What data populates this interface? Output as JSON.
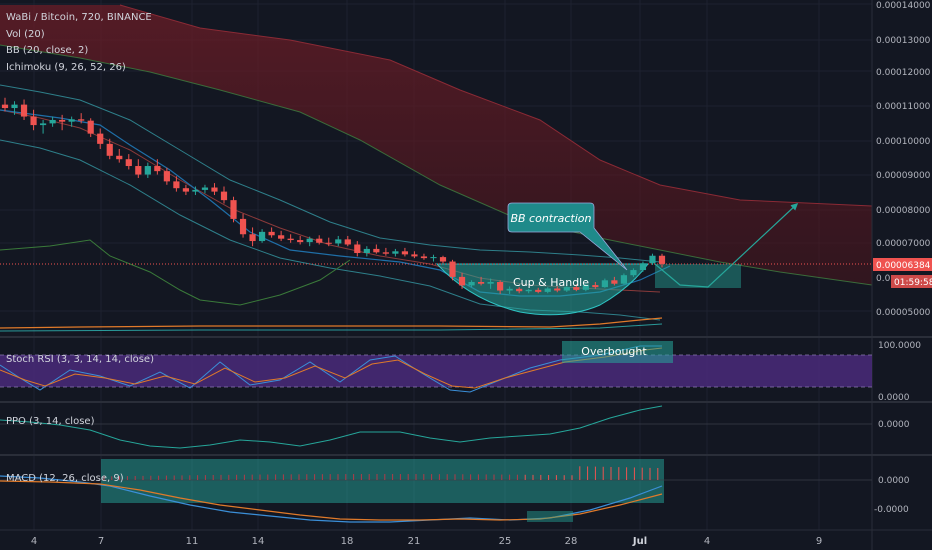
{
  "header": {
    "symbol": "WaBi / Bitcoin, 720, BINANCE",
    "indicators": [
      "Vol (20)",
      "BB (20, close, 2)",
      "Ichimoku (9, 26, 52, 26)"
    ]
  },
  "price_axis": {
    "ticks": [
      "0.00014000",
      "0.00013000",
      "0.00012000",
      "0.00011000",
      "0.00010000",
      "0.00009000",
      "0.00008000",
      "0.00007000",
      "0.00005000"
    ],
    "current_price": "0.00006384",
    "countdown": "01:59:58",
    "hidden_tick_fragment": "0.0"
  },
  "panes": {
    "stoch": {
      "label": "Stoch RSI (3, 3, 14, 14, close)",
      "ticks": [
        "100.0000",
        "0.0000"
      ]
    },
    "ppo": {
      "label": "PPO (3, 14, close)",
      "tick": "0.0000"
    },
    "macd": {
      "label": "MACD (12, 26, close, 9)",
      "ticks": [
        "0.0000",
        "-0.0000"
      ]
    }
  },
  "time_axis": [
    "4",
    "7",
    "11",
    "14",
    "18",
    "21",
    "25",
    "28",
    "Jul",
    "4",
    "9"
  ],
  "annotations": {
    "bb_contraction": "BB contraction",
    "cup_handle": "Cup & Handle",
    "overbought": "Overbought"
  },
  "colors": {
    "background": "#131722",
    "up": "#26a69a",
    "down": "#ef5350",
    "cloud": "#5b1a22",
    "price_line": "#ef5350",
    "stoch_band": "#4a2a7a",
    "annotation": "#26a69a"
  },
  "chart_data": {
    "type": "candlestick",
    "title": "WaBi / Bitcoin, 720, BINANCE",
    "ylim": [
      4.6e-05,
      0.000141
    ],
    "current_price": 6.384e-05,
    "candles": [
      {
        "o": 0.0001105,
        "h": 0.0001125,
        "l": 0.0001085,
        "c": 0.0001095
      },
      {
        "o": 0.0001095,
        "h": 0.0001115,
        "l": 0.0001075,
        "c": 0.0001105
      },
      {
        "o": 0.0001105,
        "h": 0.000112,
        "l": 0.000106,
        "c": 0.000107
      },
      {
        "o": 0.000107,
        "h": 0.000109,
        "l": 0.000103,
        "c": 0.0001045
      },
      {
        "o": 0.0001045,
        "h": 0.000106,
        "l": 0.000102,
        "c": 0.000105
      },
      {
        "o": 0.000105,
        "h": 0.000107,
        "l": 0.000104,
        "c": 0.000106
      },
      {
        "o": 0.000106,
        "h": 0.0001075,
        "l": 0.000103,
        "c": 0.0001055
      },
      {
        "o": 0.0001055,
        "h": 0.000107,
        "l": 0.000104,
        "c": 0.0001062
      },
      {
        "o": 0.0001062,
        "h": 0.000108,
        "l": 0.000105,
        "c": 0.0001058
      },
      {
        "o": 0.0001058,
        "h": 0.0001065,
        "l": 0.000101,
        "c": 0.000102
      },
      {
        "o": 0.000102,
        "h": 0.0001035,
        "l": 9.75e-05,
        "c": 9.9e-05
      },
      {
        "o": 9.9e-05,
        "h": 0.0001005,
        "l": 9.45e-05,
        "c": 9.55e-05
      },
      {
        "o": 9.55e-05,
        "h": 9.75e-05,
        "l": 9.35e-05,
        "c": 9.45e-05
      },
      {
        "o": 9.45e-05,
        "h": 9.6e-05,
        "l": 9.15e-05,
        "c": 9.25e-05
      },
      {
        "o": 9.25e-05,
        "h": 9.45e-05,
        "l": 8.9e-05,
        "c": 9e-05
      },
      {
        "o": 9e-05,
        "h": 9.35e-05,
        "l": 8.9e-05,
        "c": 9.25e-05
      },
      {
        "o": 9.25e-05,
        "h": 9.45e-05,
        "l": 9e-05,
        "c": 9.1e-05
      },
      {
        "o": 9.1e-05,
        "h": 9.2e-05,
        "l": 8.7e-05,
        "c": 8.8e-05
      },
      {
        "o": 8.8e-05,
        "h": 8.95e-05,
        "l": 8.5e-05,
        "c": 8.6e-05
      },
      {
        "o": 8.6e-05,
        "h": 8.7e-05,
        "l": 8.4e-05,
        "c": 8.5e-05
      },
      {
        "o": 8.5e-05,
        "h": 8.65e-05,
        "l": 8.4e-05,
        "c": 8.55e-05
      },
      {
        "o": 8.55e-05,
        "h": 8.7e-05,
        "l": 8.45e-05,
        "c": 8.62e-05
      },
      {
        "o": 8.62e-05,
        "h": 8.75e-05,
        "l": 8.4e-05,
        "c": 8.5e-05
      },
      {
        "o": 8.5e-05,
        "h": 8.65e-05,
        "l": 8.15e-05,
        "c": 8.25e-05
      },
      {
        "o": 8.25e-05,
        "h": 8.35e-05,
        "l": 7.6e-05,
        "c": 7.7e-05
      },
      {
        "o": 7.7e-05,
        "h": 7.85e-05,
        "l": 7.15e-05,
        "c": 7.25e-05
      },
      {
        "o": 7.25e-05,
        "h": 7.45e-05,
        "l": 6.9e-05,
        "c": 7.05e-05
      },
      {
        "o": 7.05e-05,
        "h": 7.4e-05,
        "l": 7e-05,
        "c": 7.32e-05
      },
      {
        "o": 7.32e-05,
        "h": 7.45e-05,
        "l": 7.15e-05,
        "c": 7.22e-05
      },
      {
        "o": 7.22e-05,
        "h": 7.35e-05,
        "l": 7.05e-05,
        "c": 7.12e-05
      },
      {
        "o": 7.12e-05,
        "h": 7.25e-05,
        "l": 7e-05,
        "c": 7.08e-05
      },
      {
        "o": 7.08e-05,
        "h": 7.2e-05,
        "l": 6.95e-05,
        "c": 7.02e-05
      },
      {
        "o": 7.02e-05,
        "h": 7.18e-05,
        "l": 6.9e-05,
        "c": 7.12e-05
      },
      {
        "o": 7.12e-05,
        "h": 7.22e-05,
        "l": 6.95e-05,
        "c": 7e-05
      },
      {
        "o": 7e-05,
        "h": 7.15e-05,
        "l": 6.9e-05,
        "c": 6.98e-05
      },
      {
        "o": 6.98e-05,
        "h": 7.2e-05,
        "l": 6.9e-05,
        "c": 7.1e-05
      },
      {
        "o": 7.1e-05,
        "h": 7.2e-05,
        "l": 6.9e-05,
        "c": 6.95e-05
      },
      {
        "o": 6.95e-05,
        "h": 7.05e-05,
        "l": 6.6e-05,
        "c": 6.7e-05
      },
      {
        "o": 6.7e-05,
        "h": 6.9e-05,
        "l": 6.6e-05,
        "c": 6.82e-05
      },
      {
        "o": 6.82e-05,
        "h": 6.95e-05,
        "l": 6.68e-05,
        "c": 6.72e-05
      },
      {
        "o": 6.72e-05,
        "h": 6.85e-05,
        "l": 6.62e-05,
        "c": 6.68e-05
      },
      {
        "o": 6.68e-05,
        "h": 6.82e-05,
        "l": 6.6e-05,
        "c": 6.75e-05
      },
      {
        "o": 6.75e-05,
        "h": 6.85e-05,
        "l": 6.6e-05,
        "c": 6.66e-05
      },
      {
        "o": 6.66e-05,
        "h": 6.75e-05,
        "l": 6.55e-05,
        "c": 6.6e-05
      },
      {
        "o": 6.6e-05,
        "h": 6.68e-05,
        "l": 6.5e-05,
        "c": 6.55e-05
      },
      {
        "o": 6.55e-05,
        "h": 6.65e-05,
        "l": 6.45e-05,
        "c": 6.58e-05
      },
      {
        "o": 6.58e-05,
        "h": 6.62e-05,
        "l": 6.4e-05,
        "c": 6.45e-05
      },
      {
        "o": 6.45e-05,
        "h": 6.5e-05,
        "l": 5.9e-05,
        "c": 6e-05
      },
      {
        "o": 6e-05,
        "h": 6.12e-05,
        "l": 5.65e-05,
        "c": 5.75e-05
      },
      {
        "o": 5.75e-05,
        "h": 5.9e-05,
        "l": 5.7e-05,
        "c": 5.85e-05
      },
      {
        "o": 5.85e-05,
        "h": 6e-05,
        "l": 5.75e-05,
        "c": 5.8e-05
      },
      {
        "o": 5.8e-05,
        "h": 5.95e-05,
        "l": 5.65e-05,
        "c": 5.85e-05
      },
      {
        "o": 5.85e-05,
        "h": 5.9e-05,
        "l": 5.5e-05,
        "c": 5.6e-05
      },
      {
        "o": 5.6e-05,
        "h": 5.72e-05,
        "l": 5.5e-05,
        "c": 5.65e-05
      },
      {
        "o": 5.65e-05,
        "h": 5.7e-05,
        "l": 5.52e-05,
        "c": 5.58e-05
      },
      {
        "o": 5.58e-05,
        "h": 5.65e-05,
        "l": 5.52e-05,
        "c": 5.62e-05
      },
      {
        "o": 5.62e-05,
        "h": 5.68e-05,
        "l": 5.52e-05,
        "c": 5.56e-05
      },
      {
        "o": 5.56e-05,
        "h": 5.7e-05,
        "l": 5.52e-05,
        "c": 5.66e-05
      },
      {
        "o": 5.66e-05,
        "h": 5.72e-05,
        "l": 5.55e-05,
        "c": 5.6e-05
      },
      {
        "o": 5.6e-05,
        "h": 5.75e-05,
        "l": 5.56e-05,
        "c": 5.7e-05
      },
      {
        "o": 5.7e-05,
        "h": 5.78e-05,
        "l": 5.58e-05,
        "c": 5.62e-05
      },
      {
        "o": 5.62e-05,
        "h": 5.8e-05,
        "l": 5.58e-05,
        "c": 5.76e-05
      },
      {
        "o": 5.76e-05,
        "h": 5.85e-05,
        "l": 5.65e-05,
        "c": 5.7e-05
      },
      {
        "o": 5.7e-05,
        "h": 5.95e-05,
        "l": 5.68e-05,
        "c": 5.9e-05
      },
      {
        "o": 5.9e-05,
        "h": 6e-05,
        "l": 5.75e-05,
        "c": 5.8e-05
      },
      {
        "o": 5.8e-05,
        "h": 6.1e-05,
        "l": 5.78e-05,
        "c": 6.05e-05
      },
      {
        "o": 6.05e-05,
        "h": 6.25e-05,
        "l": 6e-05,
        "c": 6.2e-05
      },
      {
        "o": 6.2e-05,
        "h": 6.45e-05,
        "l": 6.15e-05,
        "c": 6.4e-05
      },
      {
        "o": 6.4e-05,
        "h": 6.68e-05,
        "l": 6.35e-05,
        "c": 6.62e-05
      },
      {
        "o": 6.62e-05,
        "h": 6.68e-05,
        "l": 6.28e-05,
        "c": 6.38e-05
      }
    ],
    "stoch_rsi": {
      "ylim": [
        0,
        100
      ]
    },
    "ppo": {
      "zero_line": 0
    },
    "macd": {
      "zero_line": 0
    }
  }
}
